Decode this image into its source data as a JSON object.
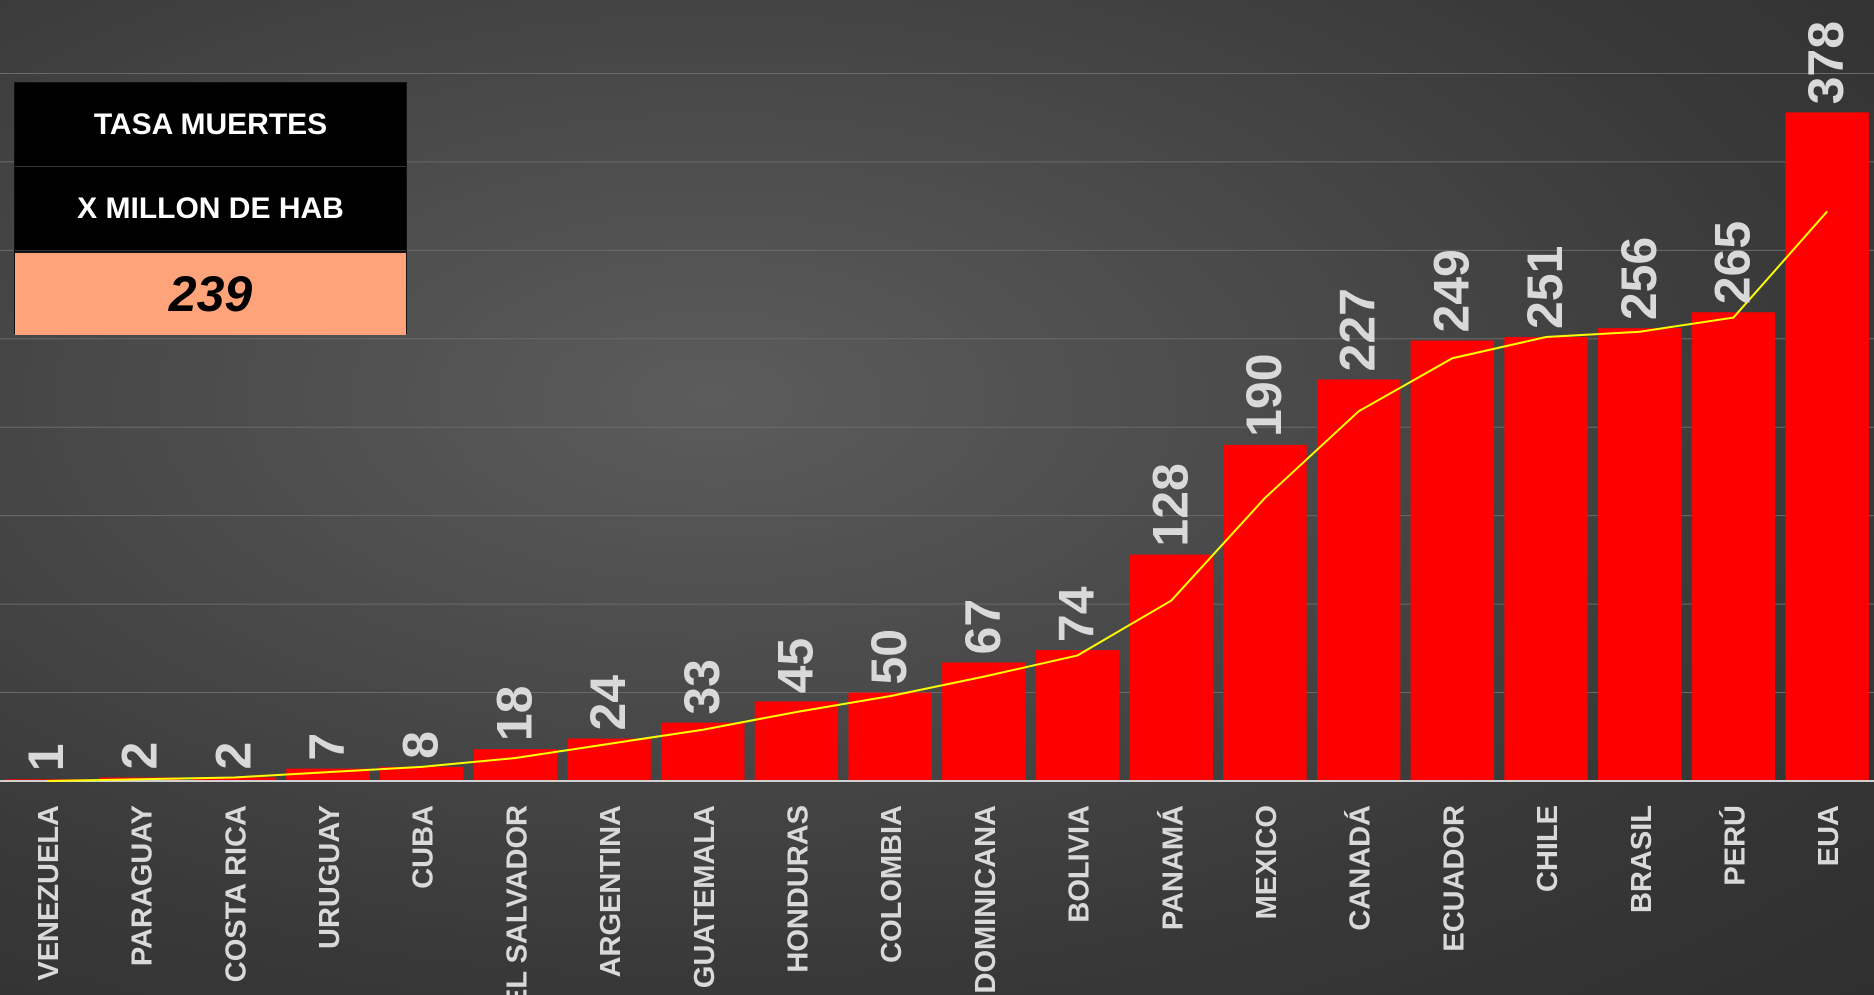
{
  "info_box": {
    "line1": "TASA MUERTES",
    "line2": "X MILLON DE HAB",
    "value": "239"
  },
  "colors": {
    "bar": "#ff0000",
    "line": "#ffff00",
    "label": "#d9d9d9",
    "grid": "#6a6a6a"
  },
  "chart_data": {
    "type": "bar",
    "categories": [
      "VENEZUELA",
      "PARAGUAY",
      "COSTA RICA",
      "URUGUAY",
      "CUBA",
      "EL SALVADOR",
      "ARGENTINA",
      "GUATEMALA",
      "HONDURAS",
      "COLOMBIA",
      "DOMINICANA",
      "BOLIVIA",
      "PANAMÁ",
      "MEXICO",
      "CANADÁ",
      "ECUADOR",
      "CHILE",
      "BRASIL",
      "PERÚ",
      "EUA"
    ],
    "series": [
      {
        "type": "bar",
        "values": [
          1,
          2,
          2,
          7,
          8,
          18,
          24,
          33,
          45,
          50,
          67,
          74,
          128,
          190,
          227,
          249,
          251,
          256,
          265,
          378
        ],
        "data_labels": [
          "1",
          "2",
          "2",
          "7",
          "8",
          "18",
          "24",
          "33",
          "45",
          "50",
          "67",
          "74",
          "128",
          "190",
          "227",
          "249",
          "251",
          "256",
          "265",
          "378"
        ]
      },
      {
        "type": "line",
        "values": [
          0,
          1,
          2,
          5,
          8,
          13,
          21,
          29,
          39,
          48,
          59,
          71,
          102,
          160,
          209,
          239,
          251,
          254,
          262,
          322
        ]
      }
    ],
    "ylim": [
      0,
      400
    ],
    "grid": true,
    "xlabel": "",
    "ylabel": "",
    "title": ""
  }
}
